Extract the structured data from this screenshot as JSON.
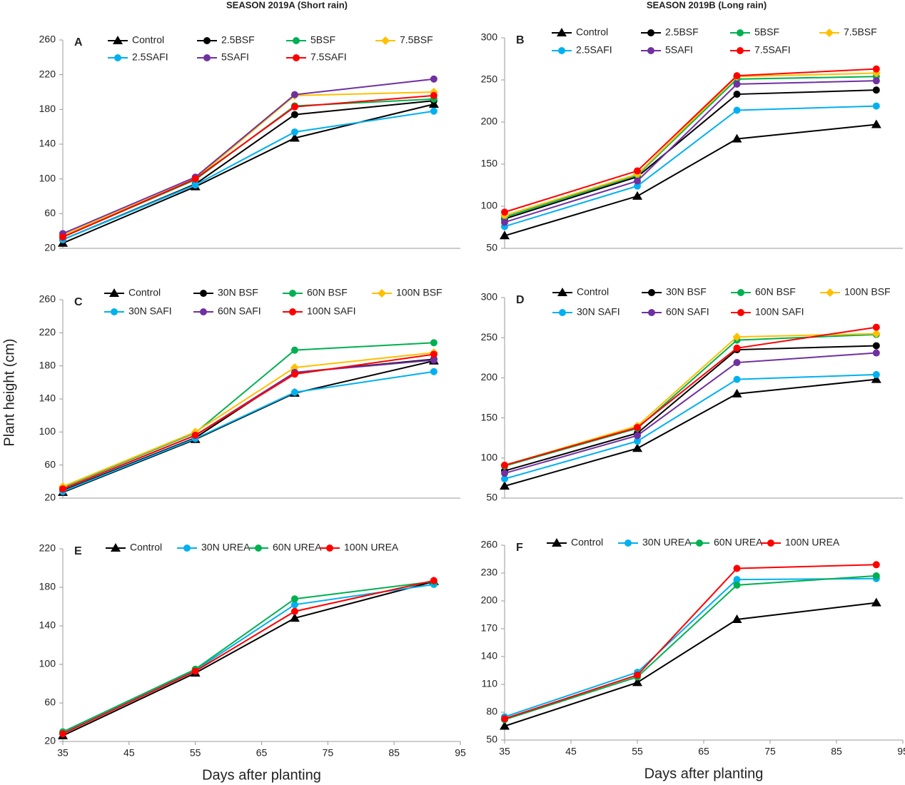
{
  "chart_data": [
    {
      "type": "line",
      "panel": "A",
      "title": "SEASON 2019A (Short rain)",
      "x": [
        35,
        55,
        70,
        91
      ],
      "xlim": [
        35,
        95
      ],
      "ylim": [
        20,
        260
      ],
      "yticks": [
        20,
        60,
        100,
        140,
        180,
        220,
        260
      ],
      "series": [
        {
          "name": "Control",
          "color": "#000000",
          "marker": "triangle",
          "values": [
            26,
            91,
            147,
            186
          ]
        },
        {
          "name": "2.5BSF",
          "color": "#000000",
          "marker": "circle",
          "values": [
            30,
            94,
            174,
            190
          ]
        },
        {
          "name": "5BSF",
          "color": "#00b050",
          "marker": "circle",
          "values": [
            33,
            99,
            184,
            192
          ]
        },
        {
          "name": "7.5BSF",
          "color": "#ffc000",
          "marker": "diamond",
          "values": [
            35,
            100,
            196,
            200
          ]
        },
        {
          "name": "2.5SAFI",
          "color": "#00b0f0",
          "marker": "circle",
          "values": [
            30,
            93,
            154,
            178
          ]
        },
        {
          "name": "5SAFI",
          "color": "#7030a0",
          "marker": "circle",
          "values": [
            37,
            102,
            197,
            215
          ]
        },
        {
          "name": "7.5SAFI",
          "color": "#ff0000",
          "marker": "circle",
          "values": [
            33,
            100,
            183,
            196
          ]
        }
      ]
    },
    {
      "type": "line",
      "panel": "B",
      "title": "SEASON 2019B (Long rain)",
      "x": [
        35,
        55,
        70,
        91
      ],
      "xlim": [
        35,
        95
      ],
      "ylim": [
        50,
        300
      ],
      "yticks": [
        50,
        100,
        150,
        200,
        250,
        300
      ],
      "series": [
        {
          "name": "Control",
          "color": "#000000",
          "marker": "triangle",
          "values": [
            65,
            112,
            180,
            197
          ]
        },
        {
          "name": "2.5BSF",
          "color": "#000000",
          "marker": "circle",
          "values": [
            85,
            135,
            233,
            238
          ]
        },
        {
          "name": "5BSF",
          "color": "#00b050",
          "marker": "circle",
          "values": [
            87,
            137,
            251,
            254
          ]
        },
        {
          "name": "7.5BSF",
          "color": "#ffc000",
          "marker": "diamond",
          "values": [
            89,
            138,
            254,
            258
          ]
        },
        {
          "name": "2.5SAFI",
          "color": "#00b0f0",
          "marker": "circle",
          "values": [
            76,
            124,
            214,
            219
          ]
        },
        {
          "name": "5SAFI",
          "color": "#7030a0",
          "marker": "circle",
          "values": [
            81,
            130,
            245,
            249
          ]
        },
        {
          "name": "7.5SAFI",
          "color": "#ff0000",
          "marker": "circle",
          "values": [
            93,
            142,
            255,
            263
          ]
        }
      ]
    },
    {
      "type": "line",
      "panel": "C",
      "ylabel": "Plant height (cm)",
      "x": [
        35,
        55,
        70,
        91
      ],
      "xlim": [
        35,
        95
      ],
      "ylim": [
        20,
        260
      ],
      "yticks": [
        20,
        60,
        100,
        140,
        180,
        220,
        260
      ],
      "series": [
        {
          "name": "Control",
          "color": "#000000",
          "marker": "triangle",
          "values": [
            27,
            91,
            147,
            186
          ]
        },
        {
          "name": "30N BSF",
          "color": "#000000",
          "marker": "circle",
          "values": [
            29,
            93,
            172,
            188
          ]
        },
        {
          "name": "60N BSF",
          "color": "#00b050",
          "marker": "circle",
          "values": [
            33,
            99,
            199,
            208
          ]
        },
        {
          "name": "100N BSF",
          "color": "#ffc000",
          "marker": "diamond",
          "values": [
            34,
            100,
            178,
            196
          ]
        },
        {
          "name": "30N SAFI",
          "color": "#00b0f0",
          "marker": "circle",
          "values": [
            28,
            92,
            148,
            173
          ]
        },
        {
          "name": "60N SAFI",
          "color": "#7030a0",
          "marker": "circle",
          "values": [
            31,
            96,
            172,
            187
          ]
        },
        {
          "name": "100N SAFI",
          "color": "#ff0000",
          "marker": "circle",
          "values": [
            31,
            96,
            170,
            194
          ]
        }
      ]
    },
    {
      "type": "line",
      "panel": "D",
      "x": [
        35,
        55,
        70,
        91
      ],
      "xlim": [
        35,
        95
      ],
      "ylim": [
        50,
        300
      ],
      "yticks": [
        50,
        100,
        150,
        200,
        250,
        300
      ],
      "series": [
        {
          "name": "Control",
          "color": "#000000",
          "marker": "triangle",
          "values": [
            65,
            112,
            180,
            198
          ]
        },
        {
          "name": "30N BSF",
          "color": "#000000",
          "marker": "circle",
          "values": [
            84,
            131,
            235,
            240
          ]
        },
        {
          "name": "60N BSF",
          "color": "#00b050",
          "marker": "circle",
          "values": [
            90,
            137,
            247,
            254
          ]
        },
        {
          "name": "100N BSF",
          "color": "#ffc000",
          "marker": "diamond",
          "values": [
            91,
            140,
            251,
            255
          ]
        },
        {
          "name": "30N SAFI",
          "color": "#00b0f0",
          "marker": "circle",
          "values": [
            74,
            121,
            198,
            204
          ]
        },
        {
          "name": "60N SAFI",
          "color": "#7030a0",
          "marker": "circle",
          "values": [
            81,
            128,
            219,
            231
          ]
        },
        {
          "name": "100N SAFI",
          "color": "#ff0000",
          "marker": "circle",
          "values": [
            91,
            138,
            237,
            263
          ]
        }
      ]
    },
    {
      "type": "line",
      "panel": "E",
      "xlabel": "Days after planting",
      "x": [
        35,
        55,
        70,
        91
      ],
      "xlim": [
        35,
        95
      ],
      "xticks": [
        35,
        45,
        55,
        65,
        75,
        85,
        95
      ],
      "ylim": [
        20,
        220
      ],
      "yticks": [
        20,
        60,
        100,
        140,
        180,
        220
      ],
      "series": [
        {
          "name": "Control",
          "color": "#000000",
          "marker": "triangle",
          "values": [
            26,
            91,
            148,
            186
          ]
        },
        {
          "name": "30N UREA",
          "color": "#00b0f0",
          "marker": "circle",
          "values": [
            29,
            94,
            162,
            183
          ]
        },
        {
          "name": "60N UREA",
          "color": "#00b050",
          "marker": "circle",
          "values": [
            30,
            95,
            168,
            186
          ]
        },
        {
          "name": "100N UREA",
          "color": "#ff0000",
          "marker": "circle",
          "values": [
            28,
            93,
            155,
            187
          ]
        }
      ]
    },
    {
      "type": "line",
      "panel": "F",
      "xlabel": "Days after planting",
      "x": [
        35,
        55,
        70,
        91
      ],
      "xlim": [
        35,
        95
      ],
      "xticks": [
        35,
        45,
        55,
        65,
        75,
        85,
        95
      ],
      "ylim": [
        50,
        260
      ],
      "yticks": [
        50,
        80,
        110,
        140,
        170,
        200,
        230,
        260
      ],
      "series": [
        {
          "name": "Control",
          "color": "#000000",
          "marker": "triangle",
          "values": [
            65,
            112,
            180,
            198
          ]
        },
        {
          "name": "30N UREA",
          "color": "#00b0f0",
          "marker": "circle",
          "values": [
            75,
            123,
            223,
            224
          ]
        },
        {
          "name": "60N UREA",
          "color": "#00b050",
          "marker": "circle",
          "values": [
            72,
            118,
            217,
            227
          ]
        },
        {
          "name": "100N UREA",
          "color": "#ff0000",
          "marker": "circle",
          "values": [
            73,
            120,
            235,
            239
          ]
        }
      ]
    }
  ]
}
